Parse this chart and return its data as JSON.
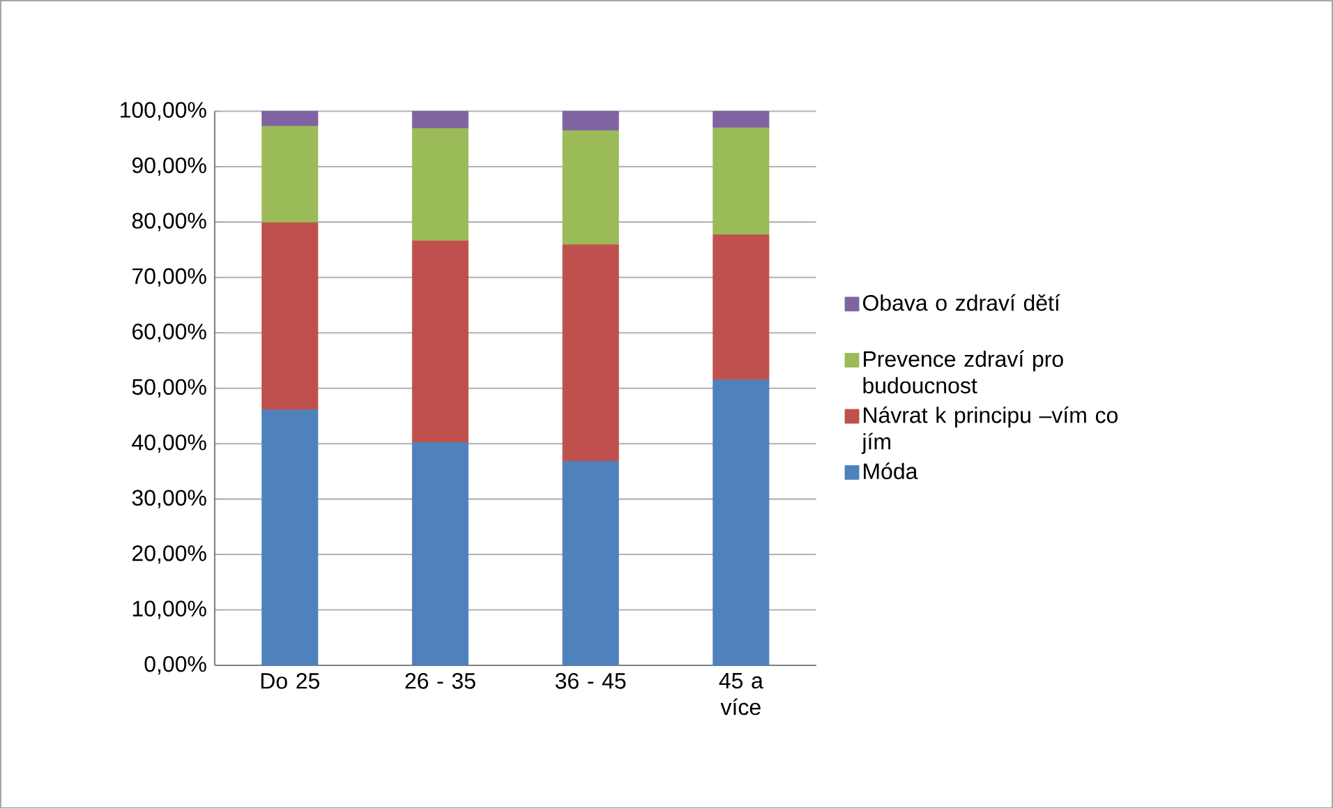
{
  "chart_data": {
    "type": "bar",
    "stacked": true,
    "categories": [
      "Do 25",
      "26 - 35",
      "36 - 45",
      "45 a více"
    ],
    "series": [
      {
        "name": "Móda",
        "color": "#4f81bd",
        "values": [
          46.1,
          40.2,
          36.8,
          51.5
        ]
      },
      {
        "name": "Návrat k principu –vím co jím",
        "color": "#c0504d",
        "values": [
          33.8,
          36.4,
          39.1,
          26.2
        ]
      },
      {
        "name": "Prevence zdraví pro budoucnost",
        "color": "#9bbb59",
        "values": [
          17.4,
          20.3,
          20.6,
          19.3
        ]
      },
      {
        "name": "Obava o zdraví dětí",
        "color": "#8064a2",
        "values": [
          2.7,
          3.1,
          3.5,
          3.0
        ]
      }
    ],
    "ylim": [
      0,
      100
    ],
    "yticks": [
      {
        "value": 0,
        "label": "0,00%"
      },
      {
        "value": 10,
        "label": "10,00%"
      },
      {
        "value": 20,
        "label": "20,00%"
      },
      {
        "value": 30,
        "label": "30,00%"
      },
      {
        "value": 40,
        "label": "40,00%"
      },
      {
        "value": 50,
        "label": "50,00%"
      },
      {
        "value": 60,
        "label": "60,00%"
      },
      {
        "value": 70,
        "label": "70,00%"
      },
      {
        "value": 80,
        "label": "80,00%"
      },
      {
        "value": 90,
        "label": "90,00%"
      },
      {
        "value": 100,
        "label": "100,00%"
      }
    ],
    "grid": "y",
    "legend": "right"
  }
}
